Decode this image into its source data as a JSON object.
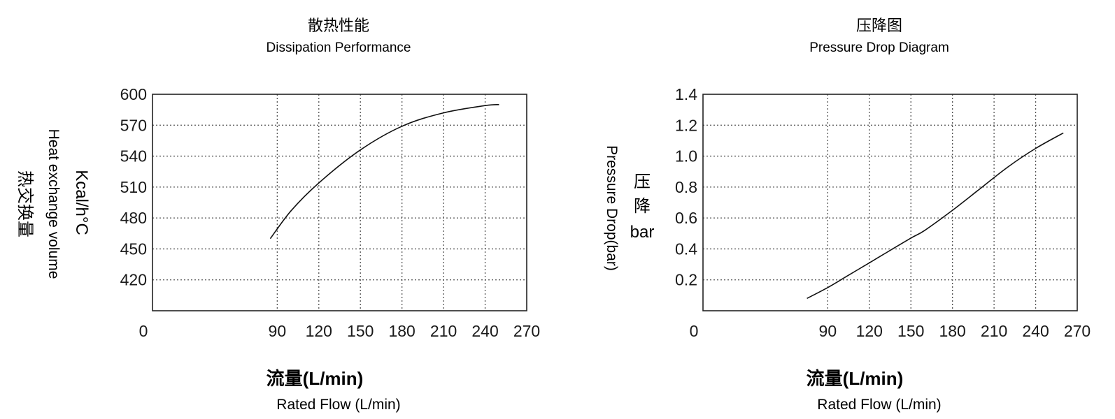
{
  "chart_data": [
    {
      "type": "line",
      "title": "散热性能",
      "subtitle": "Dissipation Performance",
      "xlabel": "流量(L/min)",
      "xlabel_sub": "Rated Flow (L/min)",
      "ylabel_unit": "Kcal/h°C",
      "ylabel": "Heat exchange volume",
      "ylabel_cn": "热交换量",
      "xlim": [
        0,
        270
      ],
      "ylim": [
        390,
        600
      ],
      "xticks": [
        "0",
        "90",
        "120",
        "150",
        "180",
        "210",
        "240",
        "270"
      ],
      "yticks": [
        "600",
        "570",
        "540",
        "510",
        "480",
        "450",
        "420"
      ],
      "grid": true,
      "series": [
        {
          "x": [
            85,
            100,
            120,
            150,
            180,
            210,
            240,
            250
          ],
          "y": [
            460,
            487,
            514,
            546,
            569,
            582,
            589,
            590
          ]
        }
      ]
    },
    {
      "type": "line",
      "title": "压降图",
      "subtitle": "Pressure Drop Diagram",
      "xlabel": "流量(L/min)",
      "xlabel_sub": "Rated Flow (L/min)",
      "ylabel_cn": "压降",
      "ylabel_unit": "bar",
      "ylabel": "Pressure Drop(bar)",
      "xlim": [
        0,
        270
      ],
      "ylim": [
        0,
        1.4
      ],
      "xticks": [
        "0",
        "90",
        "120",
        "150",
        "180",
        "210",
        "240",
        "270"
      ],
      "yticks": [
        "1.4",
        "1.2",
        "1.0",
        "0.8",
        "0.6",
        "0.4",
        "0.2"
      ],
      "grid": true,
      "series": [
        {
          "x": [
            75,
            90,
            105,
            120,
            135,
            150,
            160,
            180,
            200,
            220,
            240,
            260
          ],
          "y": [
            0.08,
            0.15,
            0.23,
            0.31,
            0.39,
            0.47,
            0.52,
            0.65,
            0.79,
            0.93,
            1.05,
            1.15
          ]
        }
      ]
    }
  ]
}
